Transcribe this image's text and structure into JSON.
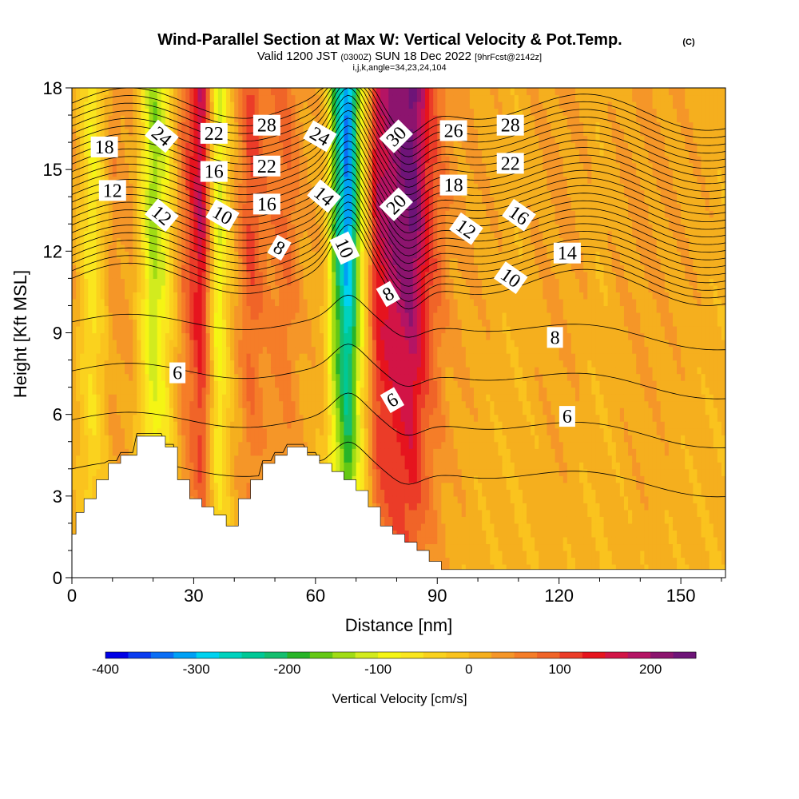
{
  "header": {
    "title": "Wind-Parallel Section at Max W: Vertical Velocity & Pot.Temp.",
    "copyright": "(C)",
    "valid_prefix": "Valid 1200 JST",
    "valid_utc": "(0300Z)",
    "valid_date": "SUN 18 Dec 2022",
    "forecast": "[9hrFcst@2142z]",
    "indices": "i,j,k,angle=34,23,24,104"
  },
  "chart_data": {
    "type": "heatmap",
    "title": "Wind-Parallel Section at Max W: Vertical Velocity & Pot.Temp.",
    "xlabel": "Distance [nm]",
    "ylabel": "Height [Kft MSL]",
    "xlim": [
      0,
      161
    ],
    "ylim": [
      0,
      18
    ],
    "x_ticks": [
      "0",
      "30",
      "60",
      "90",
      "120",
      "150"
    ],
    "y_ticks": [
      "0",
      "3",
      "6",
      "9",
      "12",
      "15",
      "18"
    ],
    "colorbar": {
      "label": "Vertical Velocity [cm/s]",
      "range": [
        -400,
        250
      ],
      "tick_labels": [
        "-400",
        "-300",
        "-200",
        "-100",
        "0",
        "100",
        "200"
      ],
      "colors": [
        "#0000e6",
        "#0a3cf0",
        "#0a6ef5",
        "#00a0f5",
        "#00d2f0",
        "#00d2be",
        "#00c896",
        "#14be6e",
        "#28b428",
        "#64c814",
        "#a0dc14",
        "#d2eb1e",
        "#f5f514",
        "#fae61e",
        "#fad21e",
        "#fac31e",
        "#f5af1e",
        "#f59628",
        "#f57d28",
        "#f06428",
        "#eb3c28",
        "#e6141e",
        "#d21446",
        "#b41464",
        "#8c146e",
        "#6e1478"
      ]
    },
    "terrain_kft": [
      [
        0,
        1.6
      ],
      [
        1,
        1.6
      ],
      [
        1,
        2.4
      ],
      [
        3,
        2.4
      ],
      [
        3,
        2.9
      ],
      [
        6,
        2.9
      ],
      [
        6,
        3.6
      ],
      [
        9,
        3.6
      ],
      [
        9,
        4.2
      ],
      [
        12,
        4.2
      ],
      [
        12,
        4.5
      ],
      [
        16,
        4.5
      ],
      [
        16,
        5.2
      ],
      [
        23,
        5.2
      ],
      [
        23,
        4.8
      ],
      [
        26,
        4.8
      ],
      [
        26,
        3.6
      ],
      [
        29,
        3.6
      ],
      [
        29,
        2.9
      ],
      [
        32,
        2.9
      ],
      [
        32,
        2.6
      ],
      [
        35,
        2.6
      ],
      [
        35,
        2.3
      ],
      [
        38,
        2.3
      ],
      [
        38,
        1.9
      ],
      [
        41,
        1.9
      ],
      [
        41,
        2.9
      ],
      [
        44,
        2.9
      ],
      [
        44,
        3.6
      ],
      [
        47,
        3.6
      ],
      [
        47,
        4.2
      ],
      [
        50,
        4.2
      ],
      [
        50,
        4.5
      ],
      [
        53,
        4.5
      ],
      [
        53,
        4.8
      ],
      [
        58,
        4.8
      ],
      [
        58,
        4.5
      ],
      [
        61,
        4.5
      ],
      [
        61,
        4.2
      ],
      [
        64,
        4.2
      ],
      [
        64,
        3.9
      ],
      [
        67,
        3.9
      ],
      [
        67,
        3.6
      ],
      [
        70,
        3.6
      ],
      [
        70,
        3.2
      ],
      [
        73,
        3.2
      ],
      [
        73,
        2.6
      ],
      [
        76,
        2.6
      ],
      [
        76,
        1.9
      ],
      [
        79,
        1.9
      ],
      [
        79,
        1.6
      ],
      [
        82,
        1.6
      ],
      [
        82,
        1.3
      ],
      [
        85,
        1.3
      ],
      [
        85,
        1.0
      ],
      [
        88,
        1.0
      ],
      [
        88,
        0.6
      ],
      [
        91,
        0.6
      ],
      [
        91,
        0.3
      ],
      [
        161,
        0.3
      ]
    ],
    "w_cm_s_columns": [
      {
        "x": 0,
        "w": 30
      },
      {
        "x": 5,
        "w": -80
      },
      {
        "x": 10,
        "w": 40
      },
      {
        "x": 15,
        "w": 30
      },
      {
        "x": 20,
        "w": -150
      },
      {
        "x": 23,
        "w": -90
      },
      {
        "x": 27,
        "w": 60
      },
      {
        "x": 32,
        "w": 180
      },
      {
        "x": 36,
        "w": -120
      },
      {
        "x": 40,
        "w": 20
      },
      {
        "x": 44,
        "w": 110
      },
      {
        "x": 48,
        "w": 60
      },
      {
        "x": 53,
        "w": 80
      },
      {
        "x": 57,
        "w": 30
      },
      {
        "x": 62,
        "w": 10
      },
      {
        "x": 65,
        "w": -200
      },
      {
        "x": 68,
        "w": -350
      },
      {
        "x": 71,
        "w": -120
      },
      {
        "x": 75,
        "w": 160
      },
      {
        "x": 79,
        "w": 200
      },
      {
        "x": 84,
        "w": 240
      },
      {
        "x": 88,
        "w": 120
      },
      {
        "x": 93,
        "w": 40
      },
      {
        "x": 100,
        "w": 20
      },
      {
        "x": 110,
        "w": 10
      },
      {
        "x": 120,
        "w": 30
      },
      {
        "x": 130,
        "w": 10
      },
      {
        "x": 140,
        "w": 30
      },
      {
        "x": 150,
        "w": 20
      },
      {
        "x": 161,
        "w": 10
      }
    ],
    "theta_contour_labels": [
      {
        "text": "18",
        "x": 8,
        "y": 15.8,
        "angle": 0
      },
      {
        "text": "12",
        "x": 10,
        "y": 14.2,
        "angle": 0
      },
      {
        "text": "24",
        "x": 22,
        "y": 16.2,
        "angle": 40
      },
      {
        "text": "12",
        "x": 22,
        "y": 13.3,
        "angle": 40
      },
      {
        "text": "22",
        "x": 35,
        "y": 16.3,
        "angle": 0
      },
      {
        "text": "16",
        "x": 35,
        "y": 14.9,
        "angle": 0
      },
      {
        "text": "10",
        "x": 37,
        "y": 13.3,
        "angle": 30
      },
      {
        "text": "28",
        "x": 48,
        "y": 16.6,
        "angle": 0
      },
      {
        "text": "22",
        "x": 48,
        "y": 15.1,
        "angle": 0
      },
      {
        "text": "16",
        "x": 48,
        "y": 13.7,
        "angle": 0
      },
      {
        "text": "8",
        "x": 51,
        "y": 12.1,
        "angle": 30
      },
      {
        "text": "24",
        "x": 61,
        "y": 16.2,
        "angle": 30
      },
      {
        "text": "14",
        "x": 62,
        "y": 14.0,
        "angle": 40
      },
      {
        "text": "10",
        "x": 67,
        "y": 12.1,
        "angle": 65
      },
      {
        "text": "30",
        "x": 80,
        "y": 16.2,
        "angle": -45
      },
      {
        "text": "20",
        "x": 80,
        "y": 13.7,
        "angle": -45
      },
      {
        "text": "8",
        "x": 78,
        "y": 10.4,
        "angle": -30
      },
      {
        "text": "26",
        "x": 94,
        "y": 16.4,
        "angle": 0
      },
      {
        "text": "18",
        "x": 94,
        "y": 14.4,
        "angle": 0
      },
      {
        "text": "12",
        "x": 97,
        "y": 12.8,
        "angle": 35
      },
      {
        "text": "28",
        "x": 108,
        "y": 16.6,
        "angle": 0
      },
      {
        "text": "22",
        "x": 108,
        "y": 15.2,
        "angle": 0
      },
      {
        "text": "16",
        "x": 110,
        "y": 13.3,
        "angle": 35
      },
      {
        "text": "10",
        "x": 108,
        "y": 11.0,
        "angle": 35
      },
      {
        "text": "14",
        "x": 122,
        "y": 11.9,
        "angle": 0
      },
      {
        "text": "8",
        "x": 119,
        "y": 8.8,
        "angle": 0
      },
      {
        "text": "6",
        "x": 26,
        "y": 7.5,
        "angle": 0
      },
      {
        "text": "6",
        "x": 79,
        "y": 6.5,
        "angle": -30
      },
      {
        "text": "6",
        "x": 122,
        "y": 5.9,
        "angle": 0
      }
    ]
  }
}
